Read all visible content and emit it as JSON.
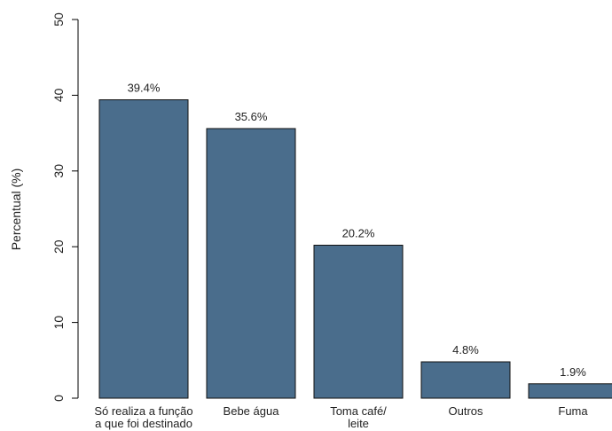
{
  "chart_data": {
    "type": "bar",
    "title": "",
    "xlabel": "",
    "ylabel": "Percentual (%)",
    "ylim": [
      0,
      50
    ],
    "yticks": [
      0,
      10,
      20,
      30,
      40,
      50
    ],
    "grid": false,
    "bar_color": "#4a6d8c",
    "categories": [
      [
        "Só realiza a função",
        "a que foi destinado"
      ],
      [
        "Bebe água"
      ],
      [
        "Toma café/",
        "leite"
      ],
      [
        "Outros"
      ],
      [
        "Fuma"
      ]
    ],
    "values": [
      39.4,
      35.6,
      20.2,
      4.8,
      1.9
    ],
    "value_labels": [
      "39.4%",
      "35.6%",
      "20.2%",
      "4.8%",
      "1.9%"
    ]
  }
}
